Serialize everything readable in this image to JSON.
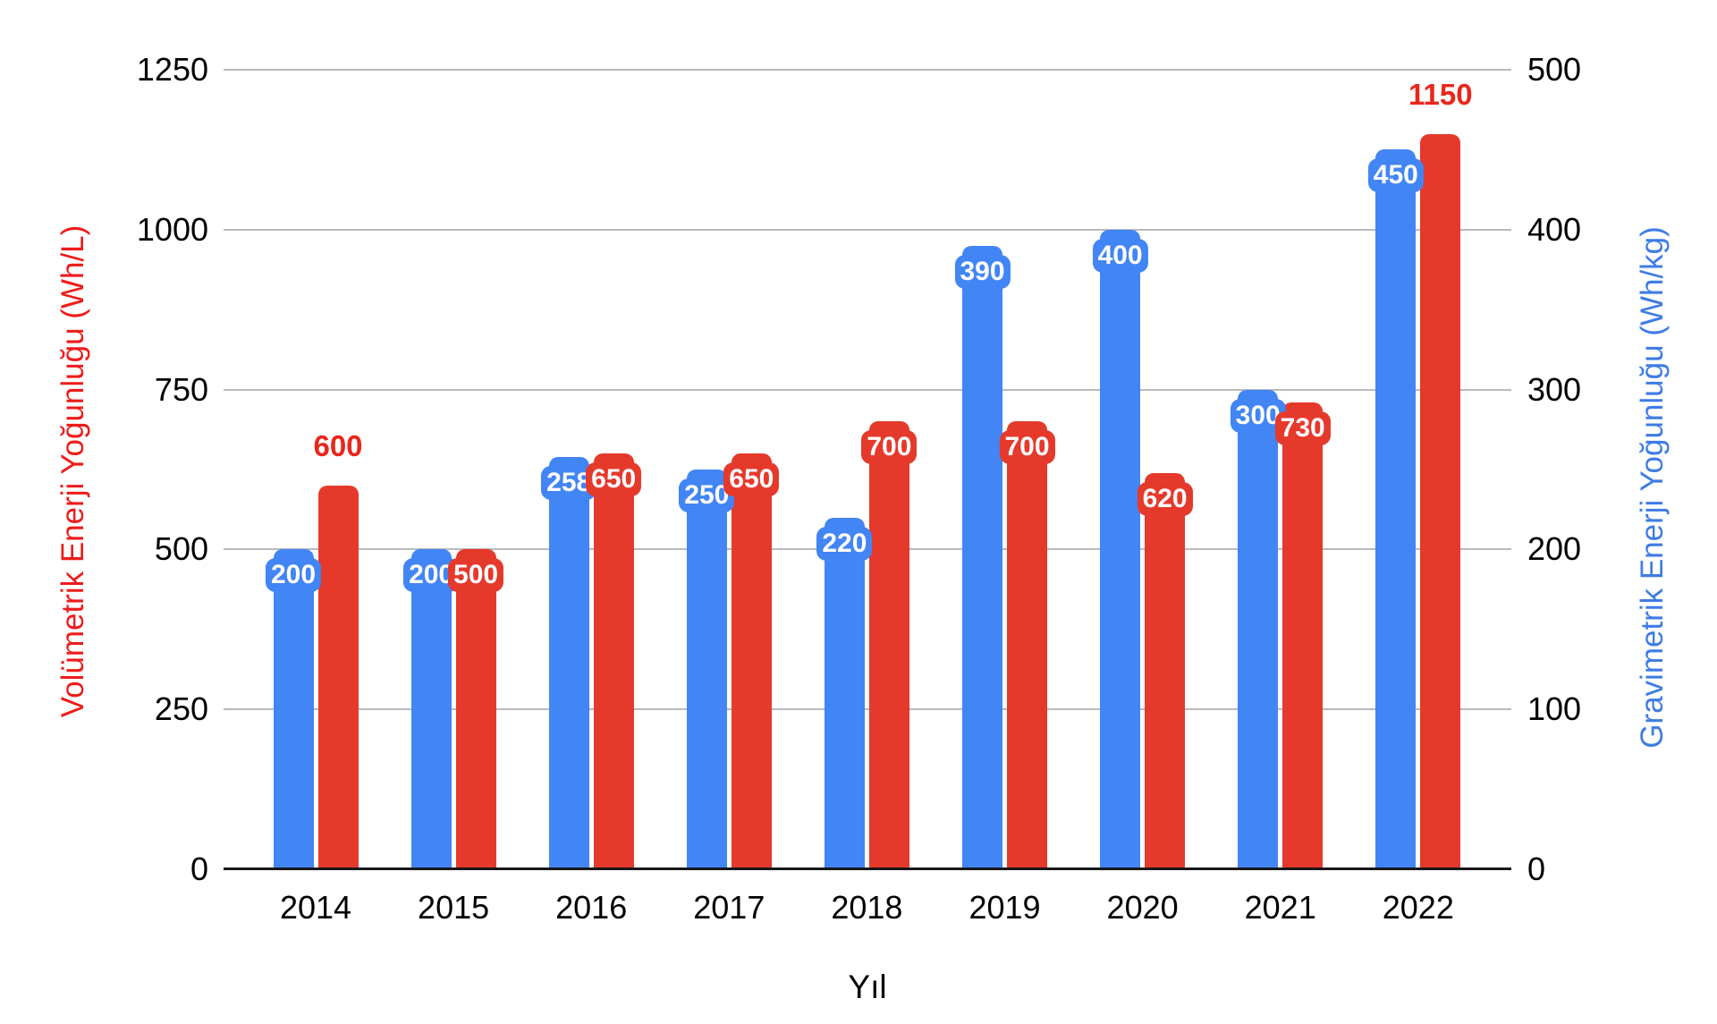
{
  "chart_data": {
    "type": "bar",
    "title": "",
    "xlabel": "Yıl",
    "categories": [
      "2014",
      "2015",
      "2016",
      "2017",
      "2018",
      "2019",
      "2020",
      "2021",
      "2022"
    ],
    "series": [
      {
        "name": "Gravimetrik Enerji Yoğunluğu (Wh/kg)",
        "axis": "right",
        "color": "#4285f4",
        "values": [
          200,
          200,
          258,
          250,
          220,
          390,
          400,
          300,
          450
        ],
        "label_positions": [
          "inside",
          "inside",
          "inside",
          "inside",
          "inside",
          "inside",
          "inside",
          "inside",
          "inside"
        ]
      },
      {
        "name": "Volümetrik Enerji Yoğunluğu (Wh/L)",
        "axis": "left",
        "color": "#e5392b",
        "values": [
          600,
          500,
          650,
          650,
          700,
          700,
          620,
          730,
          1150
        ],
        "label_positions": [
          "above",
          "inside",
          "inside",
          "inside",
          "inside",
          "inside",
          "inside",
          "inside",
          "above"
        ]
      }
    ],
    "left_axis": {
      "label": "Volümetrik Enerji Yoğunluğu (Wh/L)",
      "color": "#ed1c1a",
      "min": 0,
      "max": 1250,
      "ticks": [
        "0",
        "250",
        "500",
        "750",
        "1000",
        "1250"
      ]
    },
    "right_axis": {
      "label": "Gravimetrik Enerji Yoğunluğu (Wh/kg)",
      "color": "#3e7ce4",
      "min": 0,
      "max": 500,
      "ticks": [
        "0",
        "100",
        "200",
        "300",
        "400",
        "500"
      ]
    },
    "grid": true,
    "legend": "none",
    "outside_label_color": "#e8271c"
  }
}
